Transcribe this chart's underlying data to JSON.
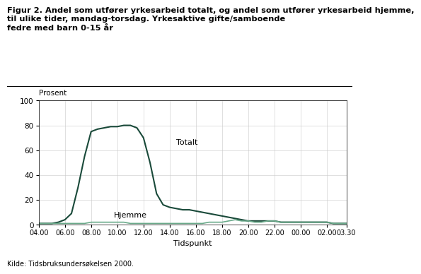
{
  "title_line1": "Figur 2. Andel som utfører yrkesarbeid totalt, og andel som utfører yrkesarbeid hjemme,",
  "title_line2": "til ulike tider, mandag-torsdag. Yrkesaktive gifte/samboende fedre med barn 0-15 år",
  "title_line3": "fedre med barn 0-15 år",
  "title_bold": "Figur 2. Andel som utfører yrkesarbeid totalt, og andel som utfører yrkesarbeid hjemme,\ntil ulike tider, mandag-torsdag. Yrkesaktive gifte/samboende fedre med barn 0-15 år",
  "ylabel": "Prosent",
  "xlabel": "Tidspunkt",
  "source": "Kilde: Tidsbruksundersøkelsen 2000.",
  "ylim": [
    0,
    100
  ],
  "yticks": [
    0,
    20,
    40,
    60,
    80,
    100
  ],
  "xtick_labels": [
    "04.00",
    "06.00",
    "08.00",
    "10.00",
    "12.00",
    "14.00",
    "16.00",
    "18.00",
    "20.00",
    "22.00",
    "00.00",
    "02.00",
    "03.30"
  ],
  "xtick_pos": [
    0,
    4,
    8,
    12,
    16,
    20,
    24,
    28,
    32,
    36,
    40,
    44,
    47
  ],
  "color_totalt": "#1a4a3a",
  "color_hjemme": "#6aaa8a",
  "label_totalt": "Totalt",
  "label_hjemme": "Hjemme",
  "totalt_x": [
    0,
    1,
    2,
    3,
    4,
    5,
    6,
    7,
    8,
    9,
    10,
    11,
    12,
    13,
    14,
    15,
    16,
    17,
    18,
    19,
    20,
    21,
    22,
    23,
    24,
    25,
    26,
    27,
    28,
    29,
    30,
    31,
    32,
    33,
    34,
    35,
    36,
    37,
    38,
    39,
    40,
    41,
    42,
    43,
    44,
    45,
    46,
    47
  ],
  "totalt_y": [
    1,
    1,
    1,
    2,
    4,
    9,
    30,
    55,
    75,
    77,
    78,
    79,
    79,
    80,
    80,
    78,
    70,
    50,
    25,
    16,
    14,
    13,
    12,
    12,
    11,
    10,
    9,
    8,
    7,
    6,
    5,
    4,
    3,
    3,
    3,
    3,
    3,
    2,
    2,
    2,
    2,
    2,
    2,
    2,
    2,
    1,
    1,
    1
  ],
  "hjemme_y": [
    1,
    1,
    1,
    1,
    1,
    1,
    1,
    1,
    2,
    2,
    2,
    2,
    2,
    2,
    1,
    1,
    1,
    1,
    1,
    1,
    1,
    1,
    1,
    1,
    1,
    1,
    2,
    2,
    2,
    3,
    4,
    3,
    3,
    2,
    2,
    3,
    3,
    2,
    2,
    2,
    2,
    2,
    2,
    2,
    2,
    1,
    1,
    1
  ]
}
